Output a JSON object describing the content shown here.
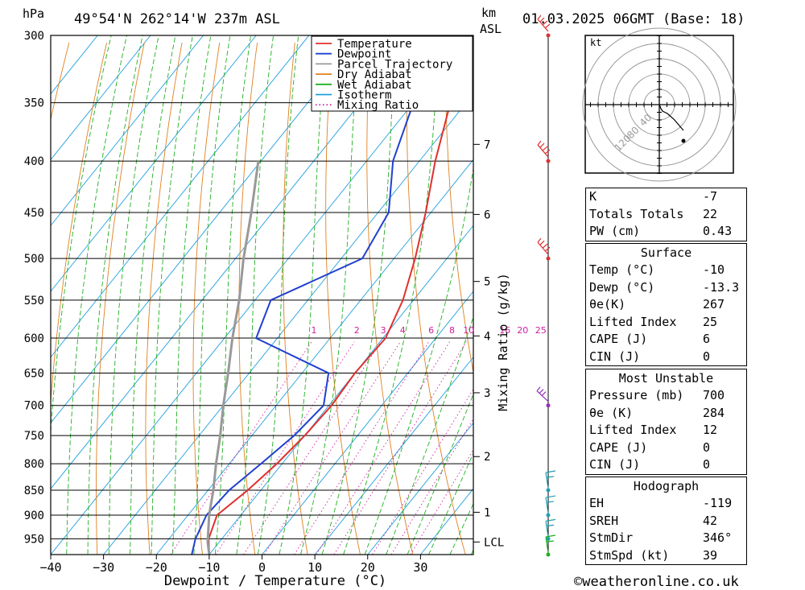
{
  "header": {
    "pressure_unit": "hPa",
    "location": "49°54'N 262°14'W 237m ASL",
    "km_label": "km",
    "asl_label": "ASL",
    "datetime": "01.03.2025 06GMT (Base: 18)"
  },
  "chart_data": {
    "type": "line",
    "xlabel": "Dewpoint / Temperature (°C)",
    "ylabel": "hPa",
    "x_ticks": [
      -40,
      -30,
      -20,
      -10,
      0,
      10,
      20,
      30
    ],
    "pressure_levels": [
      300,
      350,
      400,
      450,
      500,
      550,
      600,
      650,
      700,
      750,
      800,
      850,
      900,
      950
    ],
    "ylim": [
      300,
      985
    ],
    "xlim_at_bottom": [
      -40,
      40
    ],
    "skew_deg_per_px_y": 0.1223,
    "km_ticks": [
      {
        "label": "7",
        "p": 385
      },
      {
        "label": "6",
        "p": 452
      },
      {
        "label": "5",
        "p": 527
      },
      {
        "label": "4",
        "p": 597
      },
      {
        "label": "3",
        "p": 680
      },
      {
        "label": "2",
        "p": 787
      },
      {
        "label": "1",
        "p": 894
      },
      {
        "label": "LCL",
        "p": 957
      }
    ],
    "mixing_ratio_label": "Mixing Ratio (g/kg)",
    "mixing_ratios": [
      {
        "label": "1",
        "value": 1
      },
      {
        "label": "2",
        "value": 2
      },
      {
        "label": "3",
        "value": 3
      },
      {
        "label": "4",
        "value": 4
      },
      {
        "label": "6",
        "value": 6
      },
      {
        "label": "8",
        "value": 8
      },
      {
        "label": "10",
        "value": 10
      },
      {
        "label": "16",
        "value": 16
      },
      {
        "label": "20",
        "value": 20
      },
      {
        "label": "25",
        "value": 25
      }
    ],
    "legend": [
      {
        "name": "Temperature",
        "color": "#e03030",
        "style": "solid"
      },
      {
        "name": "Dewpoint",
        "color": "#2040d0",
        "style": "solid"
      },
      {
        "name": "Parcel Trajectory",
        "color": "#999999",
        "style": "solid"
      },
      {
        "name": "Dry Adiabat",
        "color": "#e08020",
        "style": "solid"
      },
      {
        "name": "Wet Adiabat",
        "color": "#20b020",
        "style": "solid"
      },
      {
        "name": "Isotherm",
        "color": "#20a0e0",
        "style": "solid"
      },
      {
        "name": "Mixing Ratio",
        "color": "#d020a0",
        "style": "dotted"
      }
    ],
    "series": [
      {
        "name": "Temperature",
        "color": "#e03030",
        "points": [
          [
            985,
            -10
          ],
          [
            950,
            -12.5
          ],
          [
            900,
            -14.5
          ],
          [
            850,
            -12.5
          ],
          [
            800,
            -11
          ],
          [
            750,
            -10
          ],
          [
            700,
            -9.5
          ],
          [
            650,
            -10
          ],
          [
            600,
            -9.5
          ],
          [
            550,
            -12
          ],
          [
            500,
            -16
          ],
          [
            450,
            -21
          ],
          [
            400,
            -27
          ],
          [
            350,
            -33
          ],
          [
            300,
            -38
          ]
        ]
      },
      {
        "name": "Dewpoint",
        "color": "#2040d0",
        "points": [
          [
            985,
            -13.3
          ],
          [
            950,
            -15
          ],
          [
            900,
            -16.5
          ],
          [
            850,
            -16
          ],
          [
            800,
            -14
          ],
          [
            750,
            -12
          ],
          [
            700,
            -11
          ],
          [
            650,
            -15
          ],
          [
            600,
            -34
          ],
          [
            550,
            -37
          ],
          [
            500,
            -26
          ],
          [
            450,
            -28
          ],
          [
            400,
            -35
          ],
          [
            350,
            -40
          ],
          [
            300,
            -52
          ]
        ]
      },
      {
        "name": "Parcel Trajectory",
        "color": "#999999",
        "points": [
          [
            985,
            -10
          ],
          [
            957,
            -12.2
          ],
          [
            900,
            -16
          ],
          [
            850,
            -19
          ],
          [
            800,
            -22.5
          ],
          [
            750,
            -26
          ],
          [
            700,
            -30
          ],
          [
            650,
            -34
          ],
          [
            600,
            -38.5
          ],
          [
            550,
            -43
          ],
          [
            500,
            -48.5
          ],
          [
            450,
            -54
          ],
          [
            400,
            -60.5
          ]
        ]
      }
    ],
    "wind_barbs": [
      {
        "p": 300,
        "color": "#e03030"
      },
      {
        "p": 400,
        "color": "#e03030"
      },
      {
        "p": 500,
        "color": "#e03030"
      },
      {
        "p": 700,
        "color": "#9030c0"
      },
      {
        "p": 850,
        "color": "#20a0b0"
      },
      {
        "p": 900,
        "color": "#20a0b0"
      },
      {
        "p": 950,
        "color": "#20a0b0"
      },
      {
        "p": 985,
        "color": "#20b020"
      }
    ]
  },
  "hodograph": {
    "unit": "kt",
    "ring_labels": [
      "40",
      "80",
      "120"
    ],
    "trace": [
      [
        0,
        0
      ],
      [
        1,
        -2
      ],
      [
        2,
        -5
      ],
      [
        4,
        -8
      ],
      [
        10,
        -11
      ],
      [
        18,
        -18
      ],
      [
        30,
        -32
      ]
    ]
  },
  "indices": {
    "general": [
      {
        "label": "K",
        "value": "-7"
      },
      {
        "label": "Totals Totals",
        "value": "22"
      },
      {
        "label": "PW (cm)",
        "value": "0.43"
      }
    ],
    "surface": {
      "title": "Surface",
      "rows": [
        {
          "label": "Temp (°C)",
          "value": "-10"
        },
        {
          "label": "Dewp (°C)",
          "value": "-13.3"
        },
        {
          "label": "θe(K)",
          "value": "267"
        },
        {
          "label": "Lifted Index",
          "value": "25"
        },
        {
          "label": "CAPE (J)",
          "value": "6"
        },
        {
          "label": "CIN (J)",
          "value": "0"
        }
      ]
    },
    "most_unstable": {
      "title": "Most Unstable",
      "rows": [
        {
          "label": "Pressure (mb)",
          "value": "700"
        },
        {
          "label": "θe (K)",
          "value": "284"
        },
        {
          "label": "Lifted Index",
          "value": "12"
        },
        {
          "label": "CAPE (J)",
          "value": "0"
        },
        {
          "label": "CIN (J)",
          "value": "0"
        }
      ]
    },
    "hodograph": {
      "title": "Hodograph",
      "rows": [
        {
          "label": "EH",
          "value": "-119"
        },
        {
          "label": "SREH",
          "value": "42"
        },
        {
          "label": "StmDir",
          "value": "346°"
        },
        {
          "label": "StmSpd (kt)",
          "value": "39"
        }
      ]
    }
  },
  "footer": {
    "copyright": "©weatheronline.co.uk"
  }
}
